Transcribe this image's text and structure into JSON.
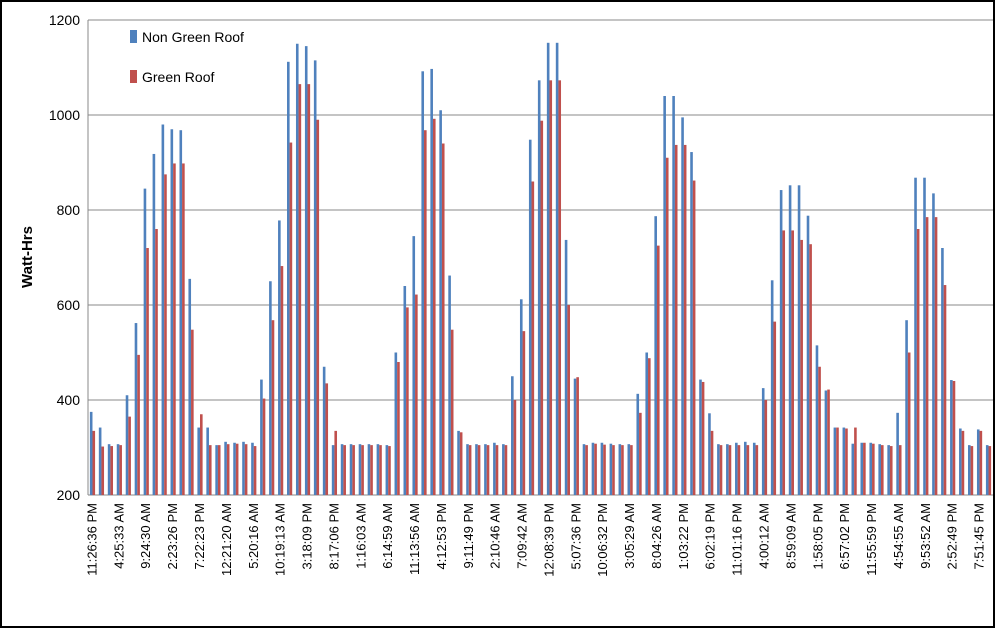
{
  "chart_data": {
    "type": "bar",
    "y_label": "Watt-Hrs",
    "categories": [
      "11:26:36 PM",
      null,
      null,
      "4:25:33 AM",
      null,
      null,
      "9:24:30 AM",
      null,
      null,
      "2:23:26 PM",
      null,
      null,
      "7:22:23 PM",
      null,
      null,
      "12:21:20 AM",
      null,
      null,
      "5:20:16 AM",
      null,
      null,
      "10:19:13 AM",
      null,
      null,
      "3:18:09 PM",
      null,
      null,
      "8:17:06 PM",
      null,
      null,
      "1:16:03 AM",
      null,
      null,
      "6:14:59 AM",
      null,
      null,
      "11:13:56 AM",
      null,
      null,
      "4:12:53 PM",
      null,
      null,
      "9:11:49 PM",
      null,
      null,
      "2:10:46 AM",
      null,
      null,
      "7:09:42 AM",
      null,
      null,
      "12:08:39 PM",
      null,
      null,
      "5:07:36 PM",
      null,
      null,
      "10:06:32 PM",
      null,
      null,
      "3:05:29 AM",
      null,
      null,
      "8:04:26 AM",
      null,
      null,
      "1:03:22 PM",
      null,
      null,
      "6:02:19 PM",
      null,
      null,
      "11:01:16 PM",
      null,
      null,
      "4:00:12 AM",
      null,
      null,
      "8:59:09 AM",
      null,
      null,
      "1:58:05 PM",
      null,
      null,
      "6:57:02 PM",
      null,
      null,
      "11:55:59 PM",
      null,
      null,
      "4:54:55 AM",
      null,
      null,
      "9:53:52 AM",
      null,
      null,
      "2:52:49 PM",
      null,
      null,
      "7:51:45 PM",
      null
    ],
    "series": [
      {
        "name": "Non Green Roof",
        "color": "#4f81bd",
        "values": [
          375,
          342,
          307,
          307,
          410,
          562,
          845,
          918,
          980,
          970,
          968,
          655,
          342,
          342,
          305,
          312,
          310,
          312,
          310,
          443,
          650,
          778,
          1112,
          1150,
          1145,
          1115,
          470,
          305,
          307,
          307,
          307,
          307,
          307,
          305,
          500,
          640,
          745,
          1092,
          1097,
          1010,
          662,
          335,
          307,
          307,
          307,
          310,
          307,
          450,
          612,
          948,
          1073,
          1152,
          1152,
          737,
          445,
          307,
          310,
          310,
          308,
          307,
          307,
          413,
          500,
          787,
          1040,
          1040,
          995,
          922,
          443,
          372,
          307,
          307,
          310,
          312,
          310,
          425,
          652,
          842,
          852,
          852,
          788,
          515,
          420,
          342,
          342,
          308,
          310,
          310,
          307,
          305,
          373,
          568,
          868,
          868,
          835,
          720,
          442,
          340,
          305,
          338,
          305
        ]
      },
      {
        "name": "Green Roof",
        "color": "#c0504d",
        "values": [
          335,
          302,
          303,
          305,
          365,
          495,
          720,
          760,
          875,
          898,
          898,
          548,
          370,
          305,
          305,
          307,
          308,
          307,
          303,
          403,
          568,
          682,
          942,
          1065,
          1065,
          990,
          435,
          335,
          305,
          305,
          305,
          305,
          305,
          303,
          480,
          595,
          622,
          968,
          992,
          940,
          548,
          332,
          305,
          305,
          305,
          305,
          305,
          400,
          545,
          860,
          988,
          1073,
          1073,
          600,
          448,
          305,
          308,
          306,
          305,
          305,
          305,
          373,
          488,
          725,
          910,
          937,
          937,
          862,
          438,
          335,
          305,
          305,
          305,
          305,
          305,
          400,
          565,
          757,
          757,
          737,
          728,
          470,
          422,
          342,
          340,
          342,
          310,
          308,
          305,
          303,
          305,
          500,
          760,
          785,
          785,
          642,
          440,
          335,
          303,
          335,
          303
        ]
      }
    ],
    "ylim": [
      200,
      1200
    ],
    "yticks": [
      200,
      400,
      600,
      800,
      1000,
      1200
    ],
    "grid": true,
    "legend": "top-left"
  }
}
